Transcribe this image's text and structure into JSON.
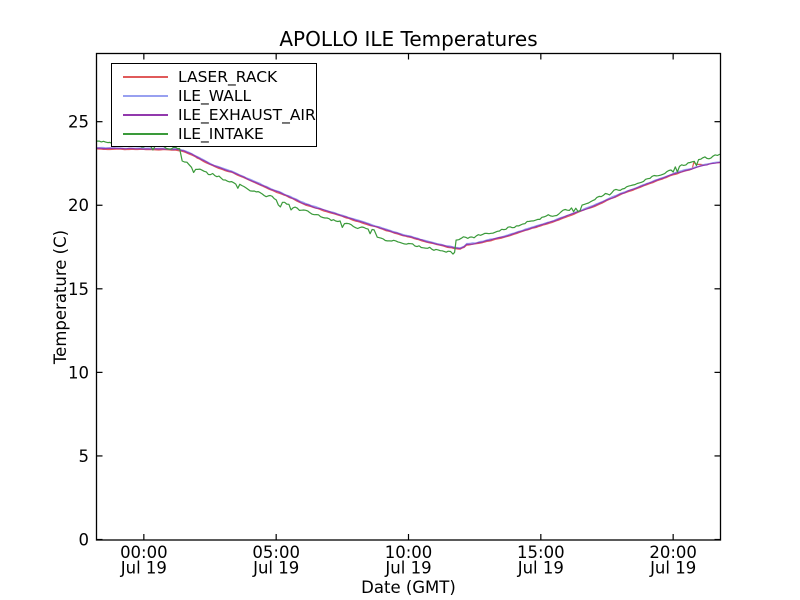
{
  "figure": {
    "background": "#ffffff",
    "frame_color": "#000000"
  },
  "chart_data": {
    "type": "line",
    "title": "APOLLO ILE Temperatures",
    "xlabel": "Date (GMT)",
    "ylabel": "Temperature (C)",
    "x_axis": {
      "unit": "hours relative to Jul 19 00:00 GMT",
      "range": [
        -1.77,
        21.77
      ],
      "ticks": [
        {
          "pos": 0,
          "label": "00:00",
          "sublabel": "Jul 19"
        },
        {
          "pos": 5,
          "label": "05:00",
          "sublabel": "Jul 19"
        },
        {
          "pos": 10,
          "label": "10:00",
          "sublabel": "Jul 19"
        },
        {
          "pos": 15,
          "label": "15:00",
          "sublabel": "Jul 19"
        },
        {
          "pos": 20,
          "label": "20:00",
          "sublabel": "Jul 19"
        }
      ]
    },
    "y_axis": {
      "range": [
        0,
        29.05
      ],
      "ticks": [
        0,
        5,
        10,
        15,
        20,
        25
      ]
    },
    "legend": {
      "position": "upper left"
    },
    "series": [
      {
        "name": "LASER_RACK",
        "color": "#e05a5a",
        "noise": 0.012,
        "base_delta": {
          "base": "ILE_WALL",
          "delta": -0.08
        },
        "points": [
          [
            20.6,
            22.1
          ],
          [
            20.72,
            22.18
          ],
          [
            20.78,
            22.58
          ],
          [
            20.88,
            22.45
          ],
          [
            21.1,
            22.42
          ],
          [
            21.4,
            22.5
          ],
          [
            21.77,
            22.55
          ]
        ]
      },
      {
        "name": "ILE_WALL",
        "color": "#98a0f0",
        "noise": 0.012,
        "points": [
          [
            -1.77,
            23.45
          ],
          [
            -0.8,
            23.42
          ],
          [
            0,
            23.42
          ],
          [
            0.8,
            23.4
          ],
          [
            1.2,
            23.38
          ],
          [
            1.5,
            23.3
          ],
          [
            1.8,
            23.1
          ],
          [
            2.1,
            22.85
          ],
          [
            2.5,
            22.5
          ],
          [
            3,
            22.2
          ],
          [
            3.3,
            22.05
          ],
          [
            3.8,
            21.7
          ],
          [
            4.3,
            21.35
          ],
          [
            4.8,
            21
          ],
          [
            5.2,
            20.75
          ],
          [
            5.7,
            20.4
          ],
          [
            6.1,
            20.1
          ],
          [
            6.4,
            19.95
          ],
          [
            6.9,
            19.7
          ],
          [
            7.4,
            19.45
          ],
          [
            8,
            19.15
          ],
          [
            8.5,
            18.9
          ],
          [
            9,
            18.65
          ],
          [
            9.4,
            18.45
          ],
          [
            9.8,
            18.25
          ],
          [
            10.2,
            18.1
          ],
          [
            10.6,
            17.9
          ],
          [
            11,
            17.75
          ],
          [
            11.4,
            17.6
          ],
          [
            11.7,
            17.5
          ],
          [
            11.95,
            17.45
          ],
          [
            12.1,
            17.55
          ],
          [
            12.2,
            17.7
          ],
          [
            12.5,
            17.75
          ],
          [
            12.8,
            17.85
          ],
          [
            13.2,
            18
          ],
          [
            13.6,
            18.15
          ],
          [
            14,
            18.35
          ],
          [
            14.5,
            18.6
          ],
          [
            15,
            18.85
          ],
          [
            15.5,
            19.1
          ],
          [
            16,
            19.4
          ],
          [
            16.5,
            19.7
          ],
          [
            17,
            20
          ],
          [
            17.5,
            20.35
          ],
          [
            18,
            20.7
          ],
          [
            18.5,
            21
          ],
          [
            19,
            21.3
          ],
          [
            19.5,
            21.6
          ],
          [
            20,
            21.9
          ],
          [
            20.4,
            22.1
          ],
          [
            20.7,
            22.2
          ],
          [
            20.9,
            22.32
          ],
          [
            21.2,
            22.45
          ],
          [
            21.5,
            22.55
          ],
          [
            21.77,
            22.6
          ]
        ]
      },
      {
        "name": "ILE_EXHAUST_AIR",
        "color": "#9239ad",
        "noise": 0.012,
        "base_delta": {
          "base": "ILE_WALL",
          "delta": -0.04
        }
      },
      {
        "name": "ILE_INTAKE",
        "color": "#3a9a3a",
        "noise": 0.07,
        "points": [
          [
            -1.77,
            23.8
          ],
          [
            -1.2,
            23.72
          ],
          [
            -0.6,
            23.65
          ],
          [
            0,
            23.6
          ],
          [
            0.6,
            23.5
          ],
          [
            1.2,
            23.4
          ],
          [
            1.35,
            23.35
          ],
          [
            1.45,
            22.6
          ],
          [
            1.8,
            22.35
          ],
          [
            2.2,
            22.05
          ],
          [
            2.6,
            21.8
          ],
          [
            3,
            21.55
          ],
          [
            3.4,
            21.3
          ],
          [
            3.7,
            21.1
          ],
          [
            4.1,
            20.85
          ],
          [
            4.4,
            20.7
          ],
          [
            4.7,
            20.55
          ],
          [
            5,
            20.35
          ],
          [
            5.4,
            20.1
          ],
          [
            5.8,
            19.85
          ],
          [
            6.2,
            19.6
          ],
          [
            6.6,
            19.4
          ],
          [
            7,
            19.2
          ],
          [
            7.5,
            18.95
          ],
          [
            8,
            18.75
          ],
          [
            8.4,
            18.6
          ],
          [
            8.7,
            18.5
          ],
          [
            8.82,
            18.1
          ],
          [
            9.2,
            17.95
          ],
          [
            9.6,
            17.8
          ],
          [
            10,
            17.65
          ],
          [
            10.4,
            17.5
          ],
          [
            10.8,
            17.4
          ],
          [
            11.2,
            17.3
          ],
          [
            11.5,
            17.22
          ],
          [
            11.68,
            17.1
          ],
          [
            11.74,
            17.2
          ],
          [
            11.8,
            17.9
          ],
          [
            12,
            18.05
          ],
          [
            12.4,
            18.15
          ],
          [
            12.8,
            18.25
          ],
          [
            13.2,
            18.4
          ],
          [
            13.6,
            18.55
          ],
          [
            14,
            18.7
          ],
          [
            14.4,
            18.9
          ],
          [
            14.8,
            19.1
          ],
          [
            15.2,
            19.3
          ],
          [
            15.6,
            19.5
          ],
          [
            16,
            19.75
          ],
          [
            16.4,
            19.95
          ],
          [
            16.8,
            20.2
          ],
          [
            17.2,
            20.45
          ],
          [
            17.6,
            20.7
          ],
          [
            18,
            20.95
          ],
          [
            18.4,
            21.2
          ],
          [
            18.8,
            21.45
          ],
          [
            19.2,
            21.7
          ],
          [
            19.6,
            21.95
          ],
          [
            20,
            22.2
          ],
          [
            20.4,
            22.4
          ],
          [
            20.8,
            22.65
          ],
          [
            21.2,
            22.85
          ],
          [
            21.5,
            22.95
          ],
          [
            21.77,
            23.05
          ]
        ]
      }
    ]
  }
}
